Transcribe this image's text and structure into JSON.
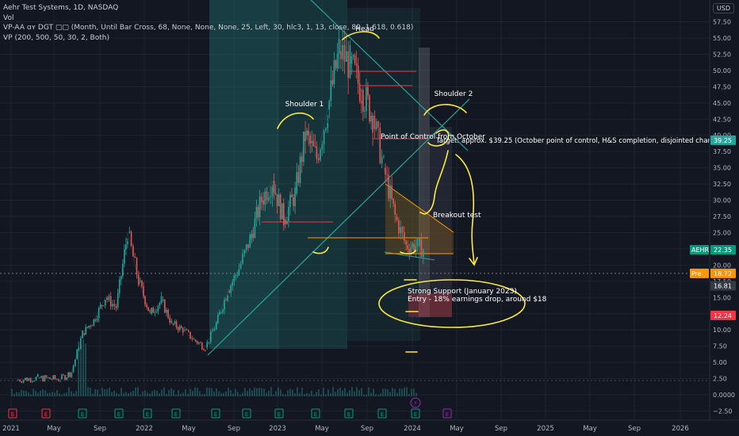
{
  "header": {
    "symbol_line": "Aehr Test Systems, 1D, NASDAQ",
    "indicator_1": "Vol",
    "indicator_2": "VP-AA ɑʏ DGT ▢▢ (Month, Until Bar Cross, 68, None, None, None, 25, Left, 30, hlc3, 1, 13, close, 89, 1.618, 0.618)",
    "indicator_3": "VP (200, 500, 50, 30, 2, Both)",
    "currency": "USD"
  },
  "chart_data": {
    "type": "line",
    "title": "Aehr Test Systems, 1D, NASDAQ",
    "ylim": [
      -2.5,
      58.5
    ],
    "y_ticks": [
      57.5,
      55.0,
      52.5,
      50.0,
      47.5,
      45.0,
      42.5,
      40.0,
      37.5,
      35.0,
      32.5,
      30.0,
      27.5,
      25.0,
      22.5,
      20.0,
      17.5,
      15.0,
      12.5,
      10.0,
      7.5,
      5.0,
      2.5,
      0.0,
      -2.5
    ],
    "y_tick_labels": [
      "57.50",
      "55.00",
      "52.50",
      "50.00",
      "47.50",
      "45.00",
      "42.50",
      "40.00",
      "37.50",
      "35.00",
      "32.50",
      "30.00",
      "27.50",
      "25.00",
      "22.50",
      "20.00",
      "17.50",
      "15.00",
      "12.50",
      "10.00",
      "7.50",
      "5.00",
      "2.50",
      "0.0000",
      "−2.50"
    ],
    "x_ticks": [
      "2021",
      "May",
      "Sep",
      "2022",
      "May",
      "Sep",
      "2023",
      "May",
      "Sep",
      "2024",
      "May",
      "Sep",
      "2025",
      "May",
      "Sep",
      "2026"
    ],
    "series": [
      {
        "name": "AEHR",
        "points": [
          [
            "2021-01",
            2.3
          ],
          [
            "2021-03",
            2.6
          ],
          [
            "2021-05",
            2.4
          ],
          [
            "2021-06",
            3.5
          ],
          [
            "2021-07",
            9.5
          ],
          [
            "2021-08",
            11.5
          ],
          [
            "2021-09",
            15.0
          ],
          [
            "2021-10",
            13.5
          ],
          [
            "2021-11",
            25.0
          ],
          [
            "2021-12",
            17.5
          ],
          [
            "2022-01",
            12.5
          ],
          [
            "2022-02",
            14.5
          ],
          [
            "2022-03",
            11.0
          ],
          [
            "2022-04",
            10.0
          ],
          [
            "2022-05",
            8.5
          ],
          [
            "2022-06",
            7.3
          ],
          [
            "2022-07",
            11.0
          ],
          [
            "2022-08",
            16.0
          ],
          [
            "2022-09",
            19.5
          ],
          [
            "2022-10",
            24.0
          ],
          [
            "2022-11",
            30.0
          ],
          [
            "2022-12",
            33.0
          ],
          [
            "2023-01",
            27.0
          ],
          [
            "2023-02",
            31.0
          ],
          [
            "2023-03",
            40.0
          ],
          [
            "2023-04",
            36.5
          ],
          [
            "2023-05",
            44.0
          ],
          [
            "2023-06",
            53.0
          ],
          [
            "2023-07",
            51.0
          ],
          [
            "2023-08",
            47.0
          ],
          [
            "2023-09",
            43.0
          ],
          [
            "2023-10",
            35.0
          ],
          [
            "2023-11",
            27.5
          ],
          [
            "2023-12",
            23.0
          ],
          [
            "2024-01",
            23.0
          ],
          [
            "2024-01-31",
            22.35
          ]
        ]
      }
    ],
    "price_labels": [
      {
        "text": "39.25",
        "value": 39.25,
        "color": "#26a69a"
      },
      {
        "text": "AEHR",
        "value": 22.35,
        "color": "#089981",
        "side": "left"
      },
      {
        "text": "22.35",
        "value": 22.35,
        "color": "#089981"
      },
      {
        "text": "Pre",
        "value": 18.72,
        "color": "#ff9800",
        "side": "left"
      },
      {
        "text": "18.72",
        "value": 18.72,
        "color": "#ff9800"
      },
      {
        "text": "16.81",
        "value": 16.81,
        "color": "#363a45"
      },
      {
        "text": "12.24",
        "value": 12.24,
        "color": "#f23645"
      }
    ],
    "annotations": {
      "head": "Head",
      "shoulder_1": "Shoulder 1",
      "shoulder_2": "Shoulder 2",
      "poc": "Point of Control from October",
      "target": "Target: approx. $39.25 (October point of control, H&S completion, disjointed chann",
      "breakout": "Breakout test",
      "support_1": "Strong Support (January 2023)",
      "support_2": "Entry - 18% earnings drop, around $18"
    },
    "event_markers": [
      "E",
      "E",
      "E",
      "E",
      "E",
      "E",
      "E",
      "E",
      "E",
      "E",
      "E",
      "E",
      "E",
      "E",
      "E",
      "E"
    ]
  }
}
